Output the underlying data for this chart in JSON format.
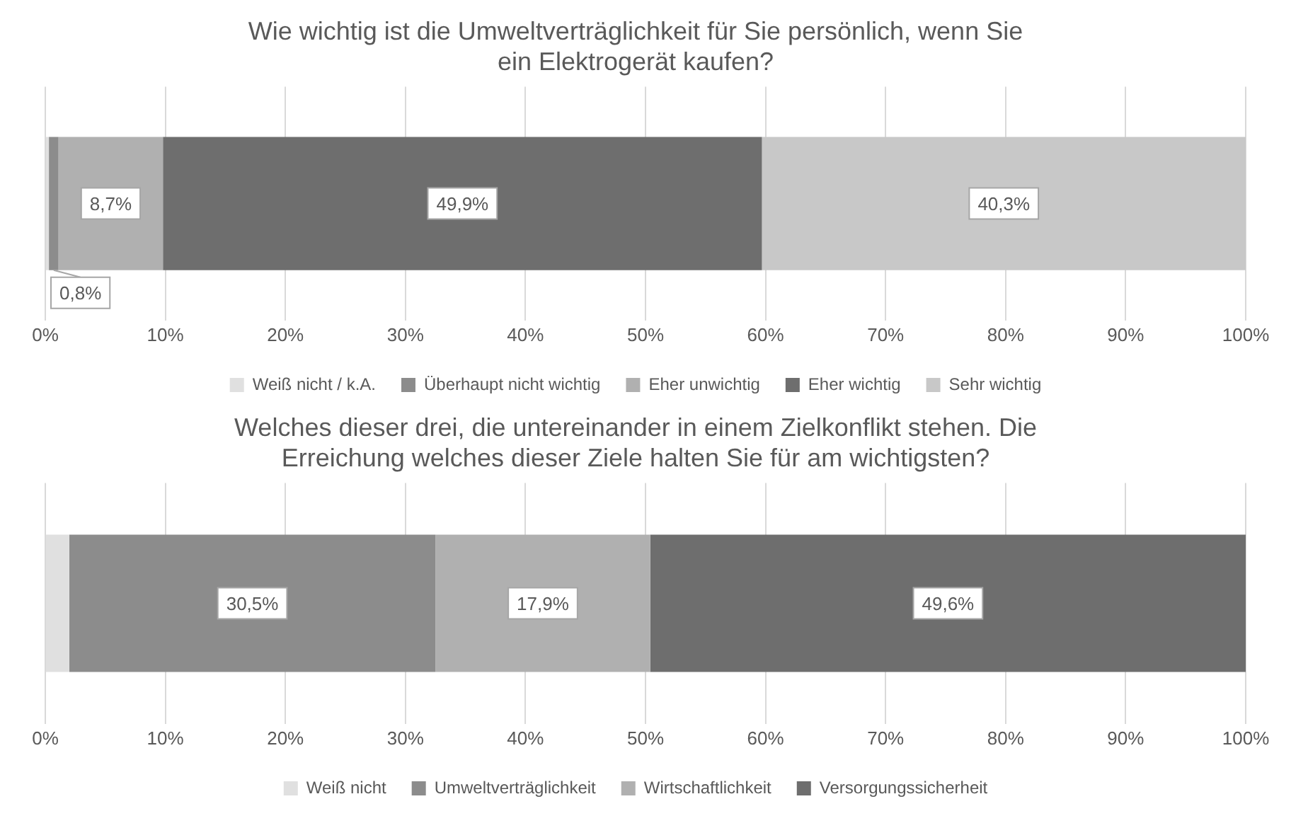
{
  "chart_data": [
    {
      "type": "bar",
      "orientation": "horizontal",
      "stacked": true,
      "title": "Wie wichtig ist die Umweltverträglichkeit für Sie persönlich, wenn Sie ein Elektrogerät kaufen?",
      "categories": [
        null
      ],
      "xlim": [
        0,
        100
      ],
      "xticks": [
        {
          "value": 0,
          "label": "0%"
        },
        {
          "value": 10,
          "label": "10%"
        },
        {
          "value": 20,
          "label": "20%"
        },
        {
          "value": 30,
          "label": "30%"
        },
        {
          "value": 40,
          "label": "40%"
        },
        {
          "value": 50,
          "label": "50%"
        },
        {
          "value": 60,
          "label": "60%"
        },
        {
          "value": 70,
          "label": "70%"
        },
        {
          "value": 80,
          "label": "80%"
        },
        {
          "value": 90,
          "label": "90%"
        },
        {
          "value": 100,
          "label": "100%"
        }
      ],
      "grid": "x",
      "legend": "bottom",
      "series": [
        {
          "name": "Weiß nicht / k.A.",
          "color": "#e0e0e0",
          "values": [
            0.3
          ],
          "value_labels": [
            null
          ]
        },
        {
          "name": "Überhaupt nicht wichtig",
          "color": "#8c8c8c",
          "values": [
            0.8
          ],
          "value_labels": [
            "0,8%"
          ]
        },
        {
          "name": "Eher unwichtig",
          "color": "#b0b0b0",
          "values": [
            8.7
          ],
          "value_labels": [
            "8,7%"
          ]
        },
        {
          "name": "Eher wichtig",
          "color": "#6e6e6e",
          "values": [
            49.9
          ],
          "value_labels": [
            "49,9%"
          ]
        },
        {
          "name": "Sehr wichtig",
          "color": "#c8c8c8",
          "values": [
            40.3
          ],
          "value_labels": [
            "40,3%"
          ]
        }
      ]
    },
    {
      "type": "bar",
      "orientation": "horizontal",
      "stacked": true,
      "title": "Welches dieser drei, die untereinander in einem Zielkonflikt stehen. Die Erreichung welches dieser Ziele halten Sie für am wichtigsten?",
      "categories": [
        null
      ],
      "xlim": [
        0,
        100
      ],
      "xticks": [
        {
          "value": 0,
          "label": "0%"
        },
        {
          "value": 10,
          "label": "10%"
        },
        {
          "value": 20,
          "label": "20%"
        },
        {
          "value": 30,
          "label": "30%"
        },
        {
          "value": 40,
          "label": "40%"
        },
        {
          "value": 50,
          "label": "50%"
        },
        {
          "value": 60,
          "label": "60%"
        },
        {
          "value": 70,
          "label": "70%"
        },
        {
          "value": 80,
          "label": "80%"
        },
        {
          "value": 90,
          "label": "90%"
        },
        {
          "value": 100,
          "label": "100%"
        }
      ],
      "grid": "x",
      "legend": "bottom",
      "series": [
        {
          "name": "Weiß nicht",
          "color": "#e0e0e0",
          "values": [
            2.0
          ],
          "value_labels": [
            null
          ]
        },
        {
          "name": "Umweltverträglichkeit",
          "color": "#8c8c8c",
          "values": [
            30.5
          ],
          "value_labels": [
            "30,5%"
          ]
        },
        {
          "name": "Wirtschaftlichkeit",
          "color": "#b0b0b0",
          "values": [
            17.9
          ],
          "value_labels": [
            "17,9%"
          ]
        },
        {
          "name": "Versorgungssicherheit",
          "color": "#6e6e6e",
          "values": [
            49.6
          ],
          "value_labels": [
            "49,6%"
          ]
        }
      ]
    }
  ]
}
